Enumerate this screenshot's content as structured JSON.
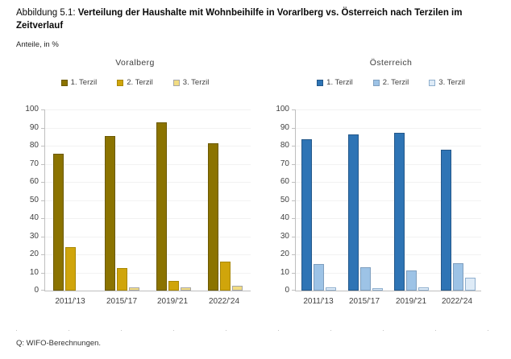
{
  "title": {
    "prefix": "Abbildung 5.1: ",
    "text": "Verteilung der Haushalte mit Wohnbeihilfe in Vorarlberg vs. Österreich nach Terzilen im Zeitverlauf"
  },
  "subtitle": "Anteile, in %",
  "footer": "Q: WIFO-Berechnungen.",
  "chart_data": [
    {
      "type": "bar",
      "title": "Voralberg",
      "categories": [
        "2011/'13",
        "2015/'17",
        "2019/'21",
        "2022/'24"
      ],
      "series": [
        {
          "name": "1. Terzil",
          "color": "#8B7300",
          "border": "#6B5900",
          "values": [
            75.5,
            85.3,
            93.0,
            81.3
          ]
        },
        {
          "name": "2. Terzil",
          "color": "#D0A50B",
          "border": "#A98806",
          "values": [
            24.0,
            12.4,
            5.2,
            16.0
          ]
        },
        {
          "name": "3. Terzil",
          "color": "#F2DC82",
          "border": "#A6A6A6",
          "values": [
            0,
            1.7,
            1.8,
            2.6
          ]
        }
      ],
      "ylim": [
        0,
        100
      ],
      "yticks": [
        0,
        10,
        20,
        30,
        40,
        50,
        60,
        70,
        80,
        90,
        100
      ],
      "grid": true,
      "legend_position": "top"
    },
    {
      "type": "bar",
      "title": "Österreich",
      "categories": [
        "2011/'13",
        "2015/'17",
        "2019/'21",
        "2022/'24"
      ],
      "series": [
        {
          "name": "1. Terzil",
          "color": "#2E74B5",
          "border": "#24588A",
          "values": [
            83.5,
            86.2,
            87.0,
            77.8
          ]
        },
        {
          "name": "2. Terzil",
          "color": "#9DC3E6",
          "border": "#7F9FBF",
          "values": [
            14.5,
            12.7,
            11.3,
            15.3
          ]
        },
        {
          "name": "3. Terzil",
          "color": "#DEEBF7",
          "border": "#8FAFCE",
          "values": [
            1.8,
            1.2,
            1.8,
            7.0
          ]
        }
      ],
      "ylim": [
        0,
        100
      ],
      "yticks": [
        0,
        10,
        20,
        30,
        40,
        50,
        60,
        70,
        80,
        90,
        100
      ],
      "grid": true,
      "legend_position": "top"
    }
  ]
}
